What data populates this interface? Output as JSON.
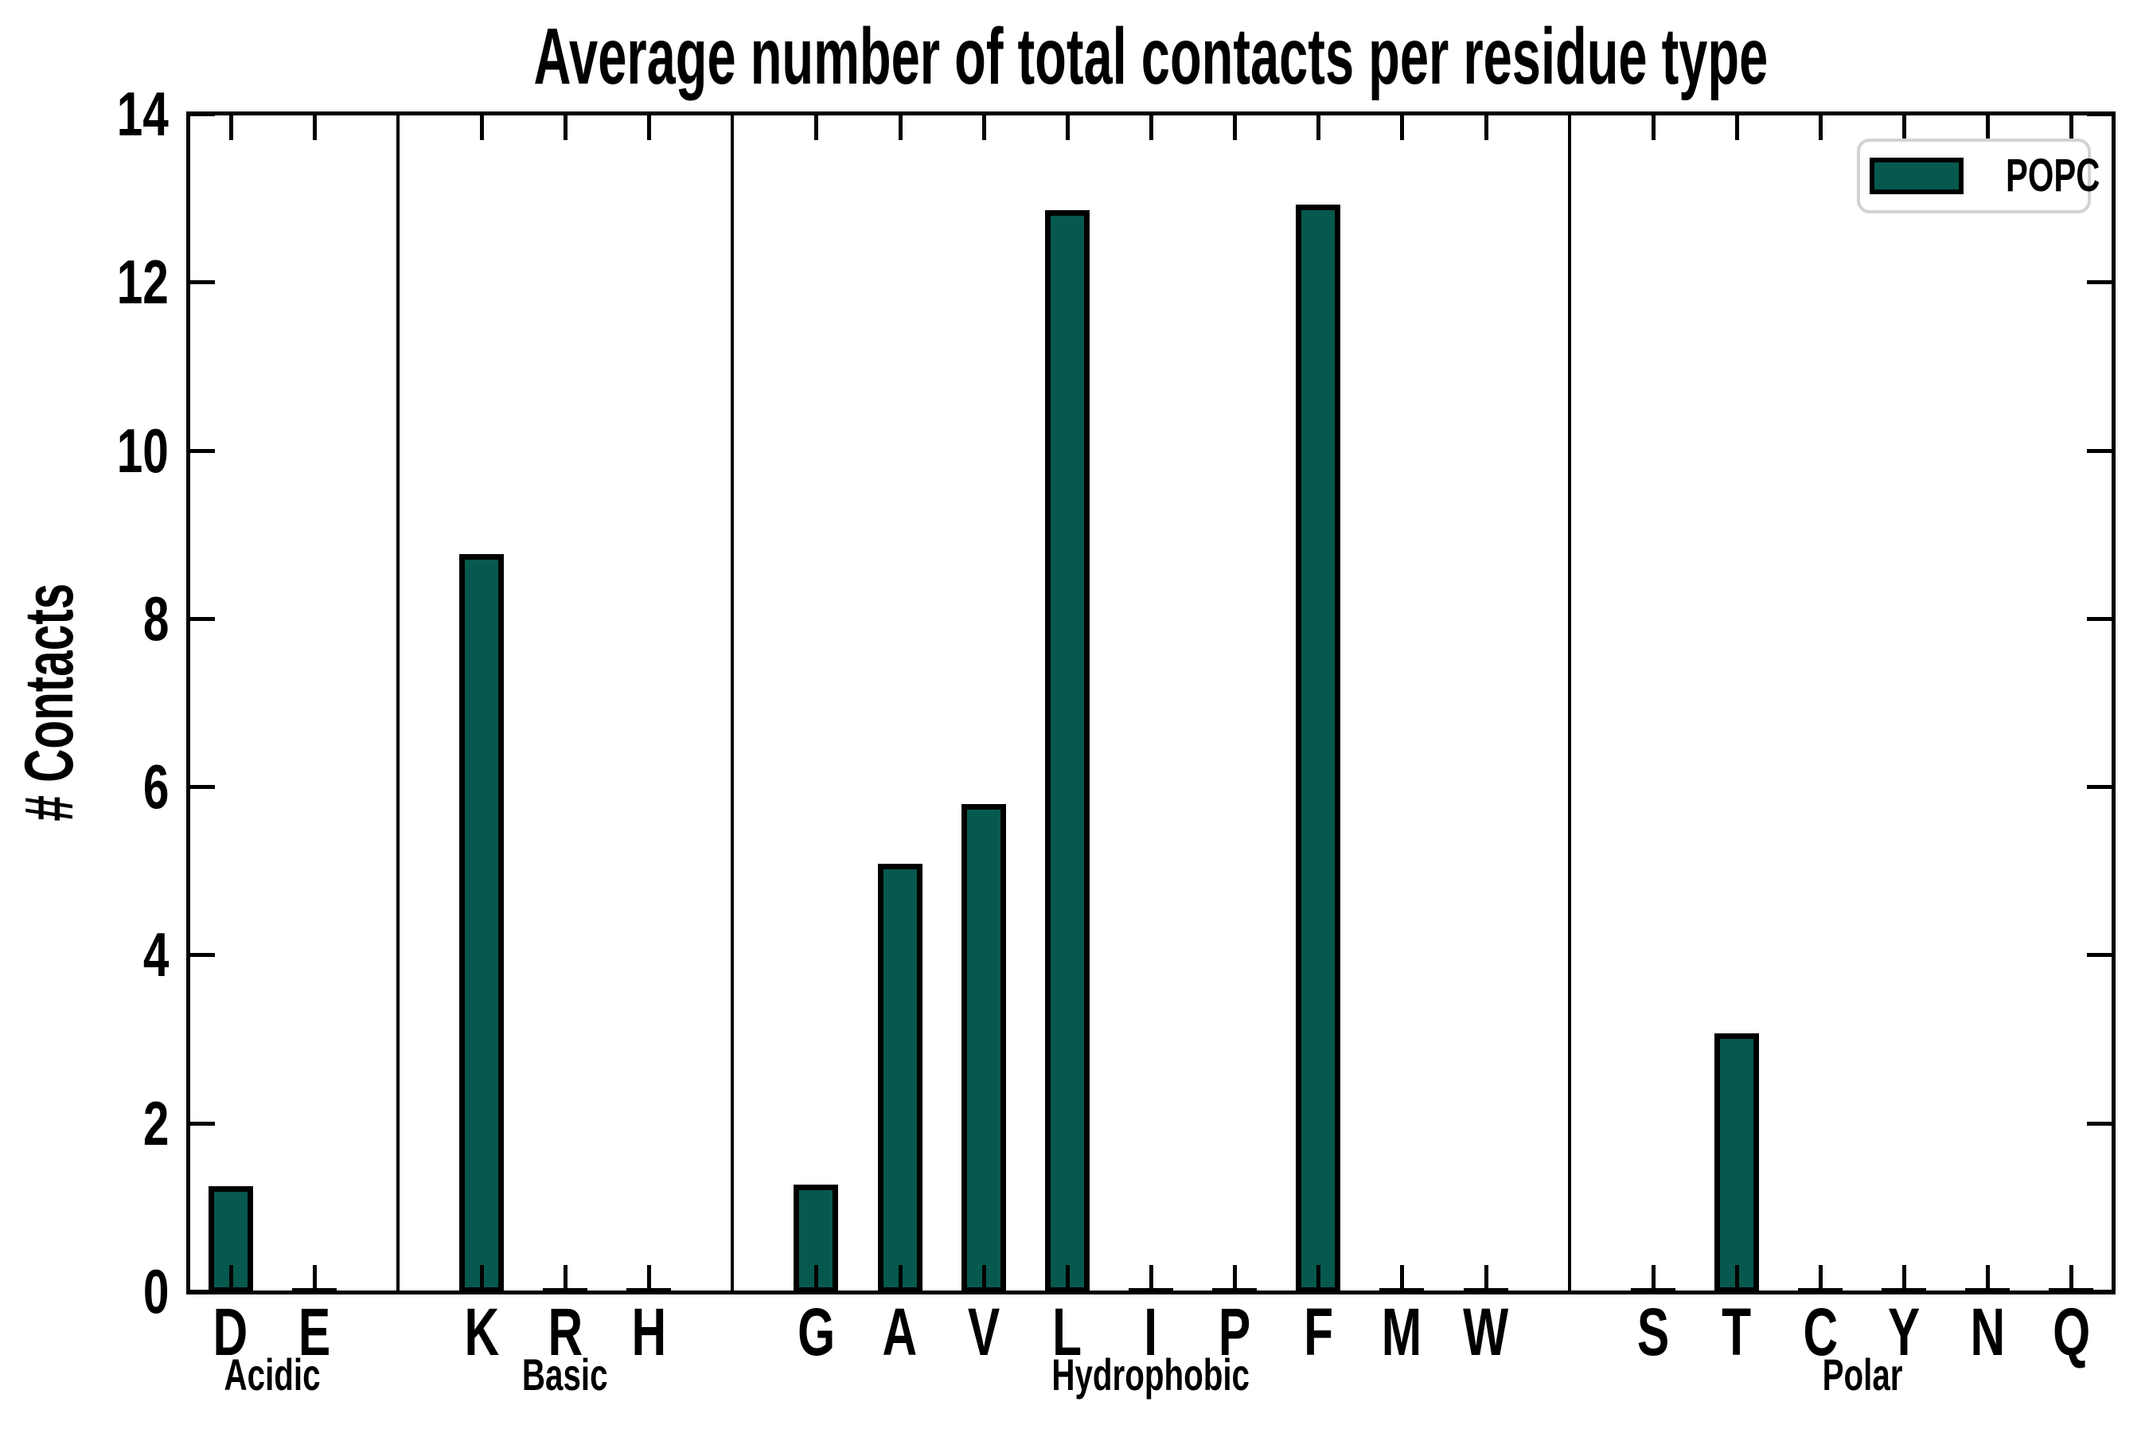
{
  "title": "Average number of total contacts per residue type",
  "ylabel": "# Contacts",
  "legend": {
    "label": "POPC"
  },
  "colors": {
    "bar": "#06594e",
    "bar_edge": "#000000",
    "axis": "#000000",
    "legend_border": "#d2d2d2",
    "background": "#ffffff"
  },
  "chart_data": {
    "type": "bar",
    "title": "Average number of total contacts per residue type",
    "xlabel": "",
    "ylabel": "# Contacts",
    "ylim": [
      0,
      14
    ],
    "yticks": [
      0,
      2,
      4,
      6,
      8,
      10,
      12,
      14
    ],
    "grid": false,
    "legend_entries": [
      "POPC"
    ],
    "legend_position": "upper right",
    "bar_color": "#06594e",
    "groups": [
      {
        "label": "Acidic",
        "categories": [
          "D",
          "E"
        ],
        "values": [
          1.23,
          0.03
        ]
      },
      {
        "label": "Basic",
        "categories": [
          "K",
          "R",
          "H"
        ],
        "values": [
          8.75,
          0.03,
          0.03
        ]
      },
      {
        "label": "Hydrophobic",
        "categories": [
          "G",
          "A",
          "V",
          "L",
          "I",
          "P",
          "F",
          "M",
          "W"
        ],
        "values": [
          1.25,
          5.06,
          5.77,
          12.84,
          0.05,
          0.04,
          12.9,
          0.05,
          0.04
        ]
      },
      {
        "label": "Polar",
        "categories": [
          "S",
          "T",
          "C",
          "Y",
          "N",
          "Q"
        ],
        "values": [
          0.04,
          3.05,
          0.03,
          0.03,
          0.03,
          0.03
        ]
      }
    ]
  }
}
